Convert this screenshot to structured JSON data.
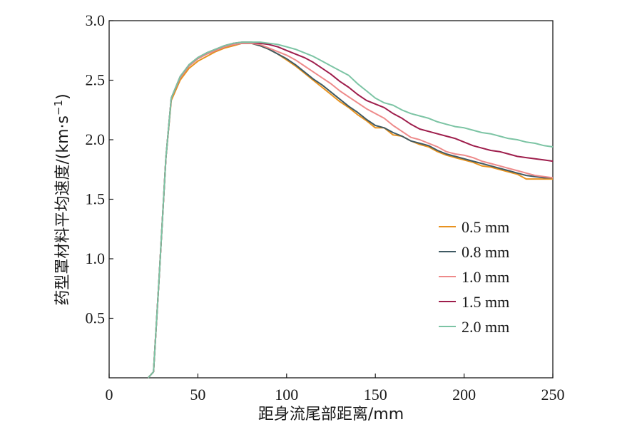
{
  "chart_data": {
    "type": "line",
    "xlabel": "距身流尾部距离/mm",
    "ylabel_main": "药型罩材料平均速度/(km·s",
    "ylabel_sup": "−1",
    "ylabel_close": ")",
    "xlim": [
      0,
      250
    ],
    "ylim": [
      0,
      3.0
    ],
    "x_ticks": [
      0,
      50,
      100,
      150,
      200,
      250
    ],
    "y_ticks": [
      0.5,
      1.0,
      1.5,
      2.0,
      2.5,
      3.0
    ],
    "x_tick_labels": [
      "0",
      "50",
      "100",
      "150",
      "200",
      "250"
    ],
    "y_tick_labels": [
      "0.5",
      "1.0",
      "1.5",
      "2.0",
      "2.5",
      "3.0"
    ],
    "legend_position": "right",
    "grid": false,
    "series": [
      {
        "name": "0.5 mm",
        "color": "#e8921f",
        "points": [
          [
            22,
            0
          ],
          [
            25,
            0.05
          ],
          [
            28,
            0.8
          ],
          [
            32,
            1.85
          ],
          [
            35,
            2.33
          ],
          [
            40,
            2.5
          ],
          [
            45,
            2.6
          ],
          [
            50,
            2.66
          ],
          [
            55,
            2.7
          ],
          [
            60,
            2.74
          ],
          [
            65,
            2.77
          ],
          [
            70,
            2.79
          ],
          [
            75,
            2.81
          ],
          [
            80,
            2.81
          ],
          [
            85,
            2.79
          ],
          [
            90,
            2.76
          ],
          [
            95,
            2.72
          ],
          [
            100,
            2.67
          ],
          [
            105,
            2.62
          ],
          [
            110,
            2.56
          ],
          [
            115,
            2.5
          ],
          [
            120,
            2.44
          ],
          [
            125,
            2.38
          ],
          [
            130,
            2.32
          ],
          [
            135,
            2.27
          ],
          [
            140,
            2.21
          ],
          [
            145,
            2.16
          ],
          [
            150,
            2.1
          ],
          [
            155,
            2.1
          ],
          [
            160,
            2.04
          ],
          [
            165,
            2.03
          ],
          [
            170,
            1.99
          ],
          [
            175,
            1.96
          ],
          [
            180,
            1.94
          ],
          [
            185,
            1.9
          ],
          [
            190,
            1.87
          ],
          [
            195,
            1.85
          ],
          [
            200,
            1.83
          ],
          [
            205,
            1.81
          ],
          [
            210,
            1.78
          ],
          [
            215,
            1.77
          ],
          [
            220,
            1.75
          ],
          [
            225,
            1.73
          ],
          [
            230,
            1.71
          ],
          [
            235,
            1.67
          ],
          [
            240,
            1.67
          ],
          [
            245,
            1.67
          ],
          [
            250,
            1.67
          ]
        ]
      },
      {
        "name": "0.8 mm",
        "color": "#3f5a63",
        "points": [
          [
            22,
            0
          ],
          [
            25,
            0.05
          ],
          [
            28,
            0.8
          ],
          [
            32,
            1.85
          ],
          [
            35,
            2.35
          ],
          [
            40,
            2.52
          ],
          [
            45,
            2.62
          ],
          [
            50,
            2.68
          ],
          [
            55,
            2.72
          ],
          [
            60,
            2.75
          ],
          [
            65,
            2.78
          ],
          [
            70,
            2.8
          ],
          [
            75,
            2.81
          ],
          [
            80,
            2.81
          ],
          [
            85,
            2.79
          ],
          [
            90,
            2.76
          ],
          [
            95,
            2.72
          ],
          [
            100,
            2.68
          ],
          [
            105,
            2.63
          ],
          [
            110,
            2.57
          ],
          [
            115,
            2.51
          ],
          [
            120,
            2.46
          ],
          [
            125,
            2.4
          ],
          [
            130,
            2.34
          ],
          [
            135,
            2.28
          ],
          [
            140,
            2.23
          ],
          [
            145,
            2.17
          ],
          [
            150,
            2.12
          ],
          [
            155,
            2.1
          ],
          [
            160,
            2.06
          ],
          [
            165,
            2.03
          ],
          [
            170,
            1.99
          ],
          [
            175,
            1.97
          ],
          [
            180,
            1.95
          ],
          [
            185,
            1.91
          ],
          [
            190,
            1.88
          ],
          [
            195,
            1.86
          ],
          [
            200,
            1.84
          ],
          [
            205,
            1.82
          ],
          [
            210,
            1.8
          ],
          [
            215,
            1.78
          ],
          [
            220,
            1.76
          ],
          [
            225,
            1.74
          ],
          [
            230,
            1.72
          ],
          [
            235,
            1.7
          ],
          [
            240,
            1.69
          ],
          [
            245,
            1.68
          ],
          [
            250,
            1.68
          ]
        ]
      },
      {
        "name": "1.0 mm",
        "color": "#ee8a8a",
        "points": [
          [
            22,
            0
          ],
          [
            25,
            0.05
          ],
          [
            28,
            0.8
          ],
          [
            32,
            1.85
          ],
          [
            35,
            2.35
          ],
          [
            40,
            2.52
          ],
          [
            45,
            2.62
          ],
          [
            50,
            2.68
          ],
          [
            55,
            2.72
          ],
          [
            60,
            2.75
          ],
          [
            65,
            2.78
          ],
          [
            70,
            2.8
          ],
          [
            75,
            2.81
          ],
          [
            80,
            2.81
          ],
          [
            85,
            2.8
          ],
          [
            90,
            2.77
          ],
          [
            95,
            2.74
          ],
          [
            100,
            2.71
          ],
          [
            105,
            2.67
          ],
          [
            110,
            2.62
          ],
          [
            115,
            2.57
          ],
          [
            120,
            2.52
          ],
          [
            125,
            2.47
          ],
          [
            130,
            2.41
          ],
          [
            135,
            2.36
          ],
          [
            140,
            2.31
          ],
          [
            145,
            2.26
          ],
          [
            150,
            2.22
          ],
          [
            155,
            2.18
          ],
          [
            160,
            2.12
          ],
          [
            165,
            2.07
          ],
          [
            170,
            2.02
          ],
          [
            175,
            2.0
          ],
          [
            180,
            1.97
          ],
          [
            185,
            1.94
          ],
          [
            190,
            1.9
          ],
          [
            195,
            1.88
          ],
          [
            200,
            1.87
          ],
          [
            205,
            1.85
          ],
          [
            210,
            1.82
          ],
          [
            215,
            1.8
          ],
          [
            220,
            1.78
          ],
          [
            225,
            1.76
          ],
          [
            230,
            1.74
          ],
          [
            235,
            1.72
          ],
          [
            240,
            1.7
          ],
          [
            245,
            1.69
          ],
          [
            250,
            1.68
          ]
        ]
      },
      {
        "name": "1.5 mm",
        "color": "#9e1e4c",
        "points": [
          [
            22,
            0
          ],
          [
            25,
            0.05
          ],
          [
            28,
            0.8
          ],
          [
            32,
            1.85
          ],
          [
            35,
            2.35
          ],
          [
            40,
            2.53
          ],
          [
            45,
            2.63
          ],
          [
            50,
            2.69
          ],
          [
            55,
            2.73
          ],
          [
            60,
            2.76
          ],
          [
            65,
            2.79
          ],
          [
            70,
            2.81
          ],
          [
            75,
            2.82
          ],
          [
            80,
            2.82
          ],
          [
            85,
            2.81
          ],
          [
            90,
            2.8
          ],
          [
            95,
            2.78
          ],
          [
            100,
            2.75
          ],
          [
            105,
            2.72
          ],
          [
            110,
            2.69
          ],
          [
            115,
            2.65
          ],
          [
            120,
            2.6
          ],
          [
            125,
            2.55
          ],
          [
            130,
            2.49
          ],
          [
            135,
            2.44
          ],
          [
            140,
            2.38
          ],
          [
            145,
            2.33
          ],
          [
            150,
            2.3
          ],
          [
            155,
            2.27
          ],
          [
            160,
            2.22
          ],
          [
            165,
            2.18
          ],
          [
            170,
            2.13
          ],
          [
            175,
            2.09
          ],
          [
            180,
            2.07
          ],
          [
            185,
            2.05
          ],
          [
            190,
            2.03
          ],
          [
            195,
            2.01
          ],
          [
            200,
            1.98
          ],
          [
            205,
            1.95
          ],
          [
            210,
            1.93
          ],
          [
            215,
            1.91
          ],
          [
            220,
            1.9
          ],
          [
            225,
            1.88
          ],
          [
            230,
            1.86
          ],
          [
            235,
            1.85
          ],
          [
            240,
            1.84
          ],
          [
            245,
            1.83
          ],
          [
            250,
            1.82
          ]
        ]
      },
      {
        "name": "2.0 mm",
        "color": "#7cc4a4",
        "points": [
          [
            22,
            0
          ],
          [
            25,
            0.05
          ],
          [
            28,
            0.8
          ],
          [
            32,
            1.85
          ],
          [
            35,
            2.35
          ],
          [
            40,
            2.53
          ],
          [
            45,
            2.63
          ],
          [
            50,
            2.69
          ],
          [
            55,
            2.73
          ],
          [
            60,
            2.76
          ],
          [
            65,
            2.79
          ],
          [
            70,
            2.81
          ],
          [
            75,
            2.82
          ],
          [
            80,
            2.82
          ],
          [
            85,
            2.82
          ],
          [
            90,
            2.81
          ],
          [
            95,
            2.8
          ],
          [
            100,
            2.78
          ],
          [
            105,
            2.76
          ],
          [
            110,
            2.73
          ],
          [
            115,
            2.7
          ],
          [
            120,
            2.66
          ],
          [
            125,
            2.62
          ],
          [
            130,
            2.58
          ],
          [
            135,
            2.54
          ],
          [
            140,
            2.47
          ],
          [
            145,
            2.41
          ],
          [
            150,
            2.35
          ],
          [
            155,
            2.31
          ],
          [
            160,
            2.29
          ],
          [
            165,
            2.25
          ],
          [
            170,
            2.22
          ],
          [
            175,
            2.2
          ],
          [
            180,
            2.18
          ],
          [
            185,
            2.15
          ],
          [
            190,
            2.13
          ],
          [
            195,
            2.11
          ],
          [
            200,
            2.1
          ],
          [
            205,
            2.08
          ],
          [
            210,
            2.06
          ],
          [
            215,
            2.05
          ],
          [
            220,
            2.03
          ],
          [
            225,
            2.01
          ],
          [
            230,
            2.0
          ],
          [
            235,
            1.98
          ],
          [
            240,
            1.97
          ],
          [
            245,
            1.95
          ],
          [
            250,
            1.94
          ]
        ]
      }
    ]
  }
}
